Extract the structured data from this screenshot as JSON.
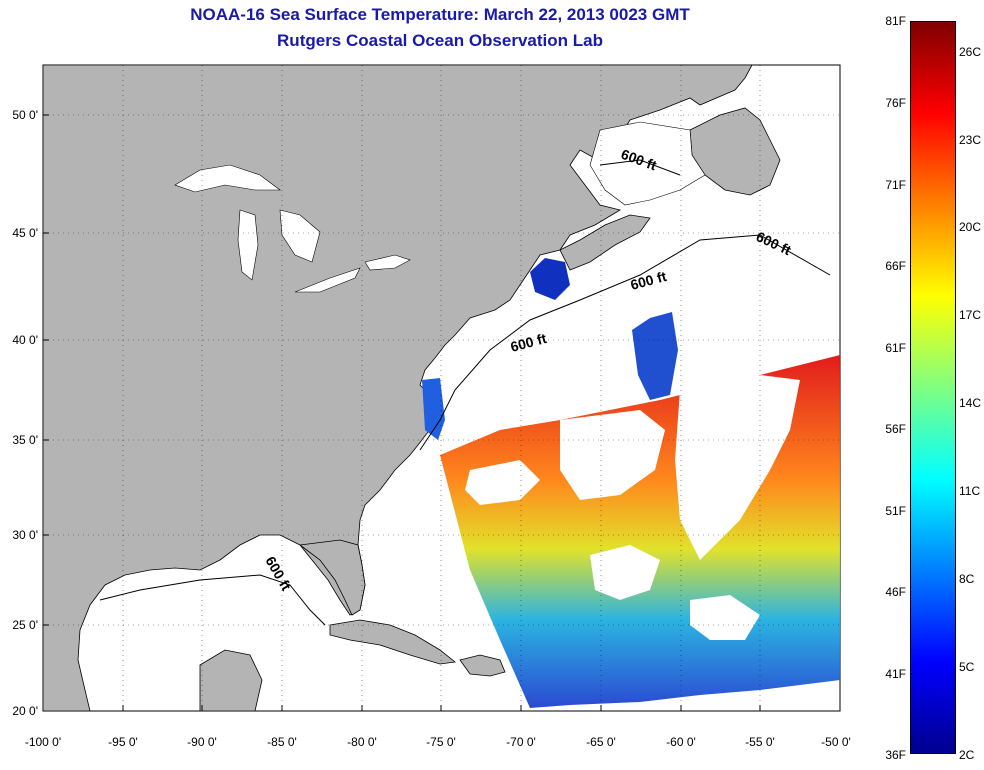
{
  "title_line1": "NOAA-16 Sea Surface Temperature:  March 22, 2013 0023 GMT",
  "title_line2": "Rutgers Coastal Ocean Observation Lab",
  "lat_labels": [
    "50 0'",
    "45 0'",
    "40 0'",
    "35 0'",
    "30 0'",
    "25 0'",
    "20 0'"
  ],
  "lon_labels": [
    "-100 0'",
    "-95 0'",
    "-90 0'",
    "-85 0'",
    "-80 0'",
    "-75 0'",
    "-70 0'",
    "-65 0'",
    "-60 0'",
    "-55 0'",
    "-50 0'"
  ],
  "contour_label": "600 ft",
  "colorbar": {
    "fahrenheit_labels": [
      "81F",
      "76F",
      "71F",
      "66F",
      "61F",
      "56F",
      "51F",
      "46F",
      "41F",
      "36F"
    ],
    "celsius_labels": [
      "26C",
      "23C",
      "20C",
      "17C",
      "14C",
      "11C",
      "8C",
      "5C",
      "2C"
    ],
    "colors": [
      "#00008f",
      "#0000ff",
      "#0080ff",
      "#00ffff",
      "#80ff80",
      "#ffff00",
      "#ff8000",
      "#ff0000",
      "#800000"
    ]
  },
  "colors": {
    "land": "#b4b4b4",
    "ocean": "#ffffff",
    "title": "#1a1aa8"
  }
}
